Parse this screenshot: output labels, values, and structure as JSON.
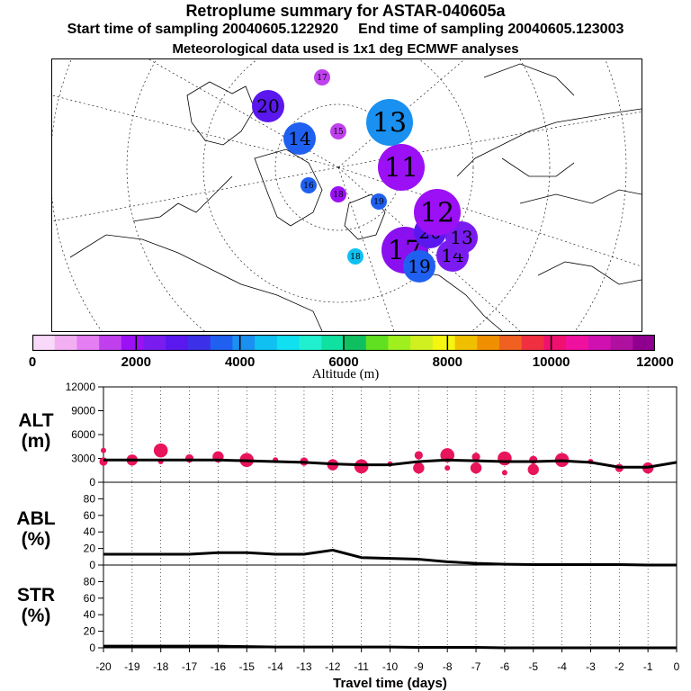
{
  "header": {
    "title": "Retroplume summary for ASTAR-040605a",
    "start_label": "Start time of sampling 20040605.122920",
    "end_label": "End time of sampling 20040605.123003",
    "met_label": "Meteorological data used is 1x1 deg ECMWF analyses"
  },
  "colors": {
    "marker": "#e8155a",
    "scale": [
      "#f9d9f9",
      "#f2b0f3",
      "#e47ef2",
      "#c040ee",
      "#9b10f5",
      "#7a1cf0",
      "#5a18ee",
      "#3c30e8",
      "#2060f0",
      "#1a90f0",
      "#10c0f0",
      "#10e0f0",
      "#20f0d0",
      "#10e0a0",
      "#10c060",
      "#60e020",
      "#a0f020",
      "#d0f020",
      "#f5f510",
      "#f0c000",
      "#f09000",
      "#f06020",
      "#f03040",
      "#f01070",
      "#f010a0",
      "#d010b0",
      "#b010a0",
      "#900090"
    ]
  },
  "map": {
    "clusters": [
      {
        "label": "17",
        "color": "#8a10f0",
        "size": "large"
      },
      {
        "label": "19",
        "color": "#2060f0",
        "size": "medium"
      },
      {
        "label": "14",
        "color": "#7a1cf0",
        "size": "medium"
      },
      {
        "label": "20",
        "color": "#5a18ee",
        "size": "medium"
      },
      {
        "label": "13",
        "color": "#7a1cf0",
        "size": "medium"
      },
      {
        "label": "12",
        "color": "#9b10f5",
        "size": "large"
      },
      {
        "label": "11",
        "color": "#9b10f5",
        "size": "large"
      },
      {
        "label": "18",
        "color": "#10c0f0",
        "size": "small"
      },
      {
        "label": "16",
        "color": "#2060f0",
        "size": "small"
      },
      {
        "label": "15",
        "color": "#c040ee",
        "size": "small"
      },
      {
        "label": "14",
        "color": "#2060f0",
        "size": "medium"
      },
      {
        "label": "20",
        "color": "#5a18ee",
        "size": "medium"
      },
      {
        "label": "19",
        "color": "#2060f0",
        "size": "small"
      },
      {
        "label": "13",
        "color": "#1a90f0",
        "size": "large"
      },
      {
        "label": "18",
        "color": "#9b10f5",
        "size": "small"
      },
      {
        "label": "17",
        "color": "#c040ee",
        "size": "small"
      }
    ]
  },
  "colorbar": {
    "ticks": [
      "0",
      "2000",
      "4000",
      "6000",
      "8000",
      "10000",
      "12000"
    ],
    "label": "Altitude (m)"
  },
  "panels": {
    "alt_title_1": "ALT",
    "alt_title_2": "(m)",
    "abl_title_1": "ABL",
    "abl_title_2": "(%)",
    "str_title_1": "STR",
    "str_title_2": "(%)",
    "xlabel": "Travel time (days)"
  },
  "chart_data": [
    {
      "type": "line",
      "name": "ALT",
      "ylabel": "ALT (m)",
      "ylim": [
        0,
        12000
      ],
      "yticks": [
        "0",
        "3000",
        "6000",
        "9000",
        "12000"
      ],
      "x": [
        -20,
        -19,
        -18,
        -17,
        -16,
        -15,
        -14,
        -13,
        -12,
        -11,
        -10,
        -9,
        -8,
        -7,
        -6,
        -5,
        -4,
        -3,
        -2,
        -1,
        0
      ],
      "values": [
        2800,
        2800,
        2800,
        2800,
        2800,
        2700,
        2600,
        2500,
        2300,
        2200,
        2200,
        2600,
        2800,
        2700,
        2600,
        2600,
        2700,
        2500,
        1900,
        1900,
        2500
      ],
      "marker_x": [
        -20,
        -20,
        -19,
        -18,
        -18,
        -17,
        -16,
        -15,
        -14,
        -13,
        -12,
        -11,
        -10,
        -9,
        -9,
        -8,
        -8,
        -7,
        -7,
        -6,
        -6,
        -5,
        -5,
        -4,
        -3,
        -2,
        -1
      ],
      "marker_y": [
        4000,
        2600,
        2800,
        4000,
        2600,
        3000,
        3200,
        2800,
        2800,
        2600,
        2200,
        2000,
        2300,
        3400,
        1800,
        3400,
        1800,
        3200,
        1800,
        3000,
        1200,
        2800,
        1600,
        2800,
        2600,
        1800,
        1800
      ]
    },
    {
      "type": "line",
      "name": "ABL",
      "ylabel": "ABL (%)",
      "ylim": [
        0,
        100
      ],
      "yticks": [
        "0",
        "20",
        "40",
        "60",
        "80"
      ],
      "x": [
        -20,
        -19,
        -18,
        -17,
        -16,
        -15,
        -14,
        -13,
        -12,
        -11,
        -10,
        -9,
        -8,
        -7,
        -6,
        -5,
        -4,
        -3,
        -2,
        -1,
        0
      ],
      "values": [
        13,
        13,
        13,
        13,
        15,
        15,
        13,
        13,
        18,
        9,
        8,
        7,
        4,
        2,
        1,
        0.5,
        0.5,
        0.5,
        0.5,
        0,
        0
      ]
    },
    {
      "type": "line",
      "name": "STR",
      "ylabel": "STR (%)",
      "ylim": [
        0,
        100
      ],
      "yticks": [
        "0",
        "20",
        "40",
        "60",
        "80"
      ],
      "x": [
        -20,
        -19,
        -18,
        -17,
        -16,
        -15,
        -14,
        -13,
        -12,
        -11,
        -10,
        -9,
        -8,
        -7,
        -6,
        -5,
        -4,
        -3,
        -2,
        -1,
        0
      ],
      "values": [
        2,
        2,
        2,
        2,
        2,
        1.5,
        1,
        1,
        1,
        1,
        1,
        0.5,
        0.5,
        0.5,
        0,
        0,
        0,
        0,
        0,
        0,
        0
      ],
      "xlabel": "Travel time (days)",
      "xticks": [
        "-20",
        "-19",
        "-18",
        "-17",
        "-16",
        "-15",
        "-14",
        "-13",
        "-12",
        "-11",
        "-10",
        "-9",
        "-8",
        "-7",
        "-6",
        "-5",
        "-4",
        "-3",
        "-2",
        "-1",
        "0"
      ]
    }
  ]
}
